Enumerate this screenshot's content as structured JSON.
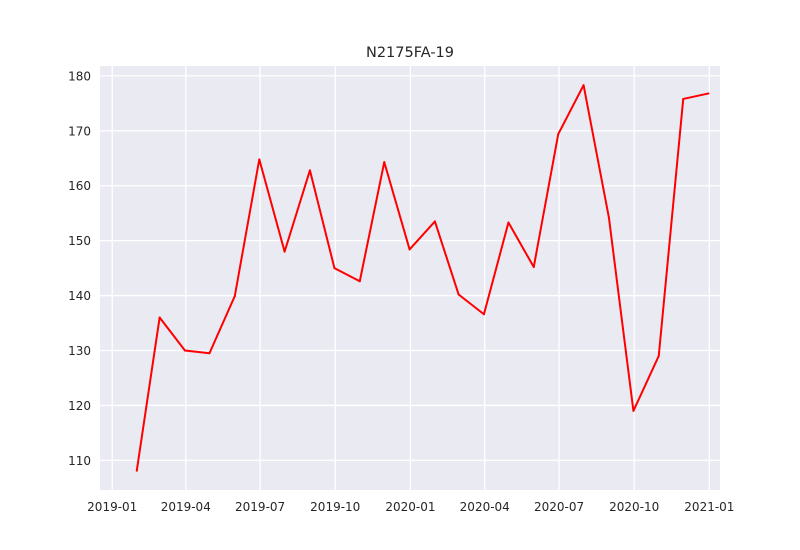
{
  "chart_data": {
    "type": "line",
    "title": "N2175FA-19",
    "xlabel": "",
    "ylabel": "",
    "grid": true,
    "background": "#eaeaf2",
    "series": [
      {
        "color": "#ff0000",
        "x": [
          "2019-01-31",
          "2019-02-28",
          "2019-03-31",
          "2019-04-30",
          "2019-05-31",
          "2019-06-30",
          "2019-07-31",
          "2019-08-31",
          "2019-09-30",
          "2019-10-31",
          "2019-11-30",
          "2019-12-31",
          "2020-01-31",
          "2020-02-29",
          "2020-03-31",
          "2020-04-30",
          "2020-05-31",
          "2020-06-30",
          "2020-07-31",
          "2020-08-31",
          "2020-09-30",
          "2020-10-31",
          "2020-11-30",
          "2020-12-31"
        ],
        "values": [
          108.1,
          136.0,
          130.0,
          129.5,
          139.9,
          164.8,
          148.0,
          162.8,
          145.0,
          142.6,
          164.3,
          148.4,
          153.5,
          140.2,
          136.6,
          153.3,
          145.2,
          169.4,
          178.3,
          154.2,
          119.0,
          129.0,
          175.8,
          176.8
        ]
      }
    ],
    "xticks": [
      "2019-01",
      "2019-04",
      "2019-07",
      "2019-10",
      "2020-01",
      "2020-04",
      "2020-07",
      "2020-10",
      "2021-01"
    ],
    "yticks": [
      110,
      120,
      130,
      140,
      150,
      160,
      170,
      180
    ],
    "xlim": [
      "2018-12-17",
      "2021-01-14"
    ],
    "ylim": [
      104.6,
      181.8
    ]
  }
}
